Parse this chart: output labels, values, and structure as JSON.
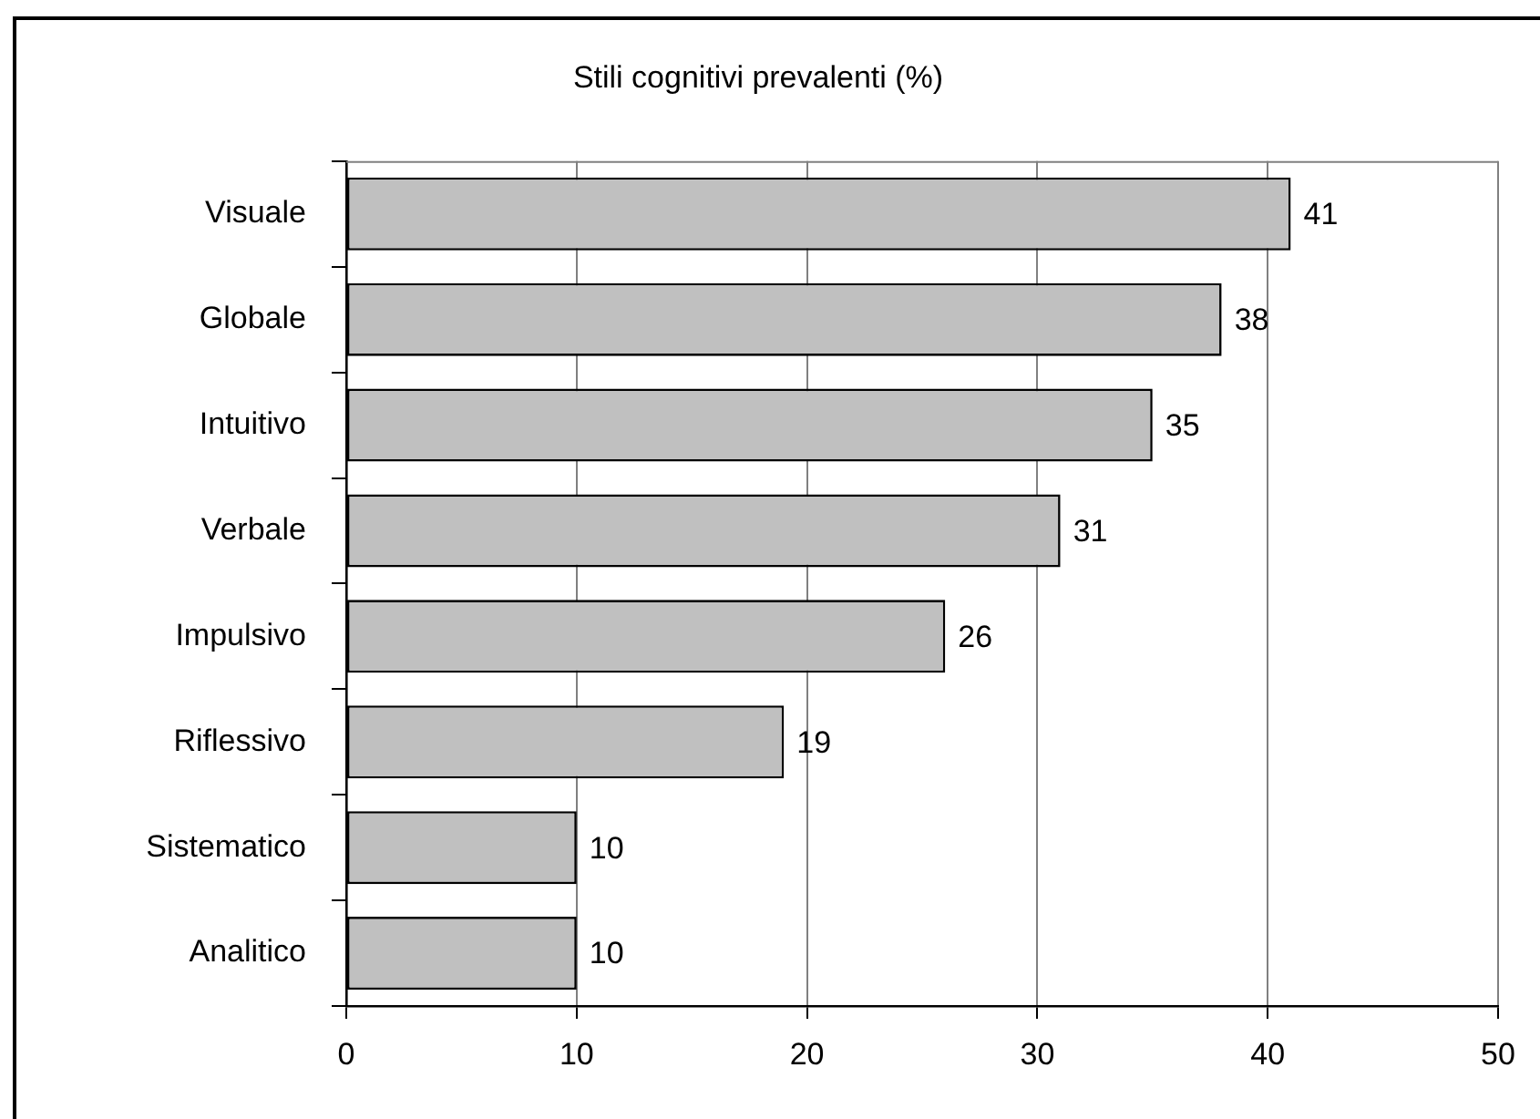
{
  "chart_data": {
    "type": "bar",
    "orientation": "horizontal",
    "title": "Stili cognitivi prevalenti (%)",
    "categories": [
      "Visuale",
      "Globale",
      "Intuitivo",
      "Verbale",
      "Impulsivo",
      "Riflessivo",
      "Sistematico",
      "Analitico"
    ],
    "values": [
      41,
      38,
      35,
      31,
      26,
      19,
      10,
      10
    ],
    "color": "#c0c0c0",
    "xlim": [
      0,
      50
    ],
    "xticks": [
      0,
      10,
      20,
      30,
      40,
      50
    ],
    "grid": "x",
    "data_labels": true
  }
}
